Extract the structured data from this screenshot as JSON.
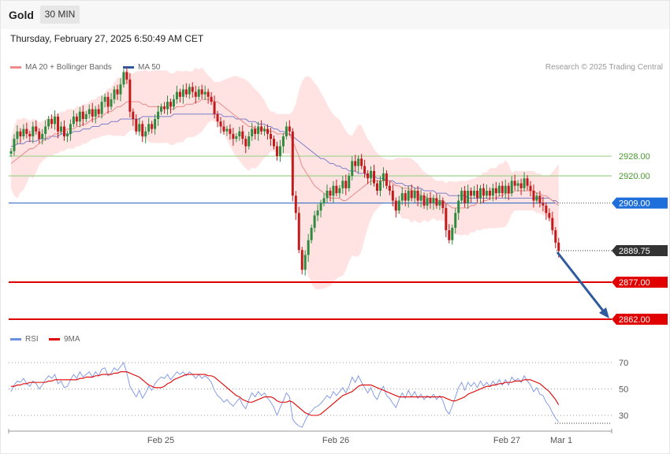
{
  "header": {
    "title": "Gold",
    "timeframe": "30 MIN"
  },
  "timestamp": "Thursday, February 27, 2025 6:50:49 AM CET",
  "legend": {
    "ma20": "MA 20 + Bollinger Bands",
    "ma50": "MA 50",
    "rsi": "RSI",
    "ma9": "9MA"
  },
  "credit": "Research © 2025 Trading Central",
  "colors": {
    "up": "#2e8b3e",
    "down": "#c21a1a",
    "band": "#ffdede",
    "ma20": "#e88a8a",
    "ma50": "#7b7fc9",
    "support": "#e00000",
    "pivot": "#1f5fbf",
    "resistance": "#9fd08c",
    "current": "#333333",
    "arrow": "#2f5b9e"
  },
  "chart_data": [
    {
      "type": "candlestick",
      "x_ticks": [
        "Feb 25",
        "Feb 26",
        "Feb 27",
        "Mar 1"
      ],
      "ylim": [
        2854,
        2948
      ],
      "levels": [
        {
          "label": "2928.00",
          "value": 2928.0,
          "kind": "resistance"
        },
        {
          "label": "2920.00",
          "value": 2920.0,
          "kind": "resistance"
        },
        {
          "label": "2909.00",
          "value": 2909.0,
          "kind": "pivot"
        },
        {
          "label": "2889.75",
          "value": 2889.75,
          "kind": "current"
        },
        {
          "label": "2877.00",
          "value": 2877.0,
          "kind": "support"
        },
        {
          "label": "2862.00",
          "value": 2862.0,
          "kind": "support"
        }
      ],
      "close": [
        2930,
        2935,
        2938,
        2936,
        2939,
        2937,
        2936,
        2940,
        2938,
        2935,
        2937,
        2940,
        2943,
        2941,
        2944,
        2938,
        2940,
        2936,
        2937,
        2941,
        2944,
        2942,
        2946,
        2943,
        2945,
        2947,
        2944,
        2947,
        2945,
        2950,
        2952,
        2948,
        2951,
        2955,
        2953,
        2957,
        2962,
        2959,
        2946,
        2943,
        2938,
        2941,
        2936,
        2938,
        2941,
        2939,
        2943,
        2946,
        2948,
        2947,
        2950,
        2948,
        2951,
        2954,
        2952,
        2955,
        2953,
        2956,
        2954,
        2952,
        2955,
        2953,
        2954,
        2952,
        2950,
        2945,
        2942,
        2940,
        2938,
        2939,
        2937,
        2935,
        2936,
        2938,
        2935,
        2932,
        2936,
        2939,
        2937,
        2940,
        2938,
        2939,
        2937,
        2935,
        2932,
        2928,
        2932,
        2936,
        2940,
        2938,
        2912,
        2905,
        2890,
        2882,
        2888,
        2894,
        2899,
        2904,
        2906,
        2909,
        2911,
        2914,
        2912,
        2916,
        2913,
        2915,
        2918,
        2915,
        2920,
        2926,
        2924,
        2927,
        2924,
        2921,
        2919,
        2922,
        2917,
        2914,
        2918,
        2921,
        2916,
        2914,
        2910,
        2906,
        2910,
        2913,
        2910,
        2914,
        2911,
        2914,
        2910,
        2912,
        2908,
        2911,
        2909,
        2911,
        2908,
        2910,
        2907,
        2898,
        2894,
        2899,
        2905,
        2910,
        2914,
        2909,
        2914,
        2912,
        2914,
        2911,
        2915,
        2912,
        2914,
        2912,
        2915,
        2913,
        2916,
        2913,
        2916,
        2913,
        2918,
        2916,
        2917,
        2915,
        2919,
        2916,
        2914,
        2910,
        2912,
        2909,
        2908,
        2905,
        2903,
        2898,
        2893,
        2889.75
      ],
      "ma20": [
        2925,
        2926,
        2927,
        2928,
        2929,
        2930,
        2931,
        2931,
        2932,
        2933,
        2934,
        2935,
        2936,
        2936,
        2937,
        2937,
        2938,
        2938,
        2939,
        2939,
        2939,
        2940,
        2940,
        2941,
        2941,
        2942,
        2943,
        2943,
        2944,
        2944,
        2945,
        2946,
        2946,
        2947,
        2948,
        2948,
        2949,
        2950,
        2950,
        2950,
        2950,
        2950,
        2949,
        2949,
        2948,
        2948,
        2948,
        2948,
        2948,
        2948,
        2948,
        2947,
        2947,
        2948,
        2948,
        2948,
        2949,
        2949,
        2949,
        2950,
        2950,
        2951,
        2951,
        2951,
        2951,
        2950,
        2950,
        2949,
        2948,
        2947,
        2946,
        2945,
        2944,
        2943,
        2942,
        2941,
        2940,
        2940,
        2939,
        2939,
        2939,
        2939,
        2938,
        2938,
        2938,
        2937,
        2937,
        2937,
        2937,
        2937,
        2934,
        2931,
        2928,
        2924,
        2922,
        2920,
        2918,
        2916,
        2915,
        2914,
        2913,
        2912,
        2911,
        2911,
        2911,
        2911,
        2910,
        2910,
        2911,
        2912,
        2913,
        2914,
        2915,
        2916,
        2917,
        2918,
        2918,
        2918,
        2918,
        2918,
        2918,
        2918,
        2917,
        2916,
        2916,
        2915,
        2915,
        2915,
        2914,
        2914,
        2913,
        2912,
        2912,
        2911,
        2911,
        2911,
        2910,
        2910,
        2910,
        2909,
        2908,
        2907,
        2907,
        2907,
        2907,
        2907,
        2907,
        2908,
        2908,
        2909,
        2909,
        2910,
        2910,
        2911,
        2911,
        2911,
        2912,
        2912,
        2913,
        2913,
        2913,
        2914,
        2914,
        2914,
        2914,
        2914,
        2914,
        2914,
        2913,
        2913,
        2912,
        2912,
        2911,
        2910,
        2909,
        2908
      ],
      "ma50": [
        2932,
        2932,
        2933,
        2933,
        2933,
        2934,
        2934,
        2934,
        2934,
        2935,
        2935,
        2935,
        2935,
        2936,
        2936,
        2936,
        2937,
        2937,
        2937,
        2937,
        2938,
        2938,
        2938,
        2939,
        2939,
        2939,
        2940,
        2940,
        2940,
        2941,
        2941,
        2941,
        2942,
        2942,
        2942,
        2943,
        2943,
        2943,
        2943,
        2943,
        2943,
        2943,
        2944,
        2944,
        2944,
        2944,
        2944,
        2944,
        2944,
        2944,
        2944,
        2944,
        2945,
        2945,
        2945,
        2945,
        2945,
        2945,
        2945,
        2945,
        2945,
        2945,
        2945,
        2945,
        2945,
        2945,
        2945,
        2945,
        2944,
        2944,
        2944,
        2944,
        2943,
        2943,
        2943,
        2943,
        2942,
        2942,
        2942,
        2941,
        2941,
        2941,
        2940,
        2940,
        2939,
        2939,
        2938,
        2938,
        2937,
        2937,
        2936,
        2935,
        2934,
        2933,
        2932,
        2931,
        2930,
        2929,
        2928,
        2927,
        2927,
        2926,
        2925,
        2925,
        2924,
        2924,
        2923,
        2923,
        2922,
        2922,
        2922,
        2921,
        2921,
        2921,
        2920,
        2920,
        2920,
        2919,
        2919,
        2919,
        2918,
        2918,
        2918,
        2917,
        2917,
        2917,
        2916,
        2916,
        2916,
        2915,
        2915,
        2915,
        2914,
        2914,
        2914,
        2914,
        2913,
        2913,
        2913,
        2913,
        2912,
        2912,
        2912,
        2912,
        2912,
        2912,
        2911,
        2911,
        2911,
        2911,
        2911,
        2911,
        2911,
        2911,
        2911,
        2911,
        2911,
        2911,
        2911,
        2911,
        2911,
        2911,
        2911,
        2911,
        2911,
        2911,
        2911,
        2911,
        2911,
        2911,
        2911,
        2911,
        2911,
        2910,
        2910,
        2909
      ]
    },
    {
      "type": "line",
      "series_names": [
        "RSI",
        "9MA"
      ],
      "y_ticks": [
        "70",
        "50",
        "30"
      ],
      "ylim": [
        20,
        80
      ],
      "rsi": [
        48,
        53,
        56,
        55,
        58,
        54,
        52,
        56,
        54,
        50,
        53,
        57,
        60,
        58,
        61,
        54,
        56,
        51,
        52,
        57,
        61,
        58,
        63,
        59,
        61,
        63,
        59,
        63,
        60,
        65,
        66,
        60,
        62,
        66,
        64,
        67,
        70,
        62,
        52,
        48,
        44,
        49,
        43,
        47,
        52,
        49,
        54,
        57,
        59,
        58,
        61,
        57,
        60,
        63,
        61,
        63,
        60,
        63,
        61,
        58,
        61,
        58,
        60,
        58,
        55,
        49,
        45,
        43,
        40,
        42,
        39,
        37,
        40,
        43,
        38,
        35,
        42,
        47,
        44,
        48,
        45,
        47,
        43,
        40,
        36,
        30,
        36,
        41,
        47,
        44,
        27,
        24,
        22,
        21,
        26,
        31,
        33,
        36,
        37,
        39,
        42,
        45,
        43,
        48,
        45,
        48,
        51,
        47,
        52,
        59,
        55,
        60,
        55,
        51,
        47,
        51,
        45,
        42,
        48,
        52,
        45,
        43,
        39,
        36,
        42,
        47,
        43,
        49,
        44,
        48,
        43,
        46,
        42,
        45,
        43,
        46,
        42,
        45,
        41,
        34,
        31,
        37,
        44,
        51,
        55,
        49,
        55,
        52,
        55,
        51,
        56,
        52,
        55,
        52,
        56,
        53,
        57,
        53,
        57,
        53,
        59,
        56,
        58,
        55,
        60,
        56,
        53,
        48,
        51,
        46,
        45,
        40,
        37,
        32,
        28,
        25
      ],
      "ma9": [
        52,
        52,
        53,
        53,
        54,
        54,
        55,
        55,
        55,
        55,
        55,
        55,
        56,
        56,
        57,
        57,
        57,
        57,
        57,
        57,
        57,
        57,
        58,
        58,
        59,
        59,
        59,
        60,
        60,
        61,
        61,
        61,
        61,
        62,
        62,
        63,
        63,
        63,
        62,
        61,
        60,
        59,
        57,
        55,
        53,
        52,
        51,
        51,
        51,
        52,
        54,
        55,
        57,
        58,
        59,
        60,
        61,
        61,
        61,
        61,
        61,
        61,
        61,
        60,
        60,
        59,
        57,
        55,
        53,
        51,
        49,
        47,
        45,
        44,
        42,
        41,
        40,
        40,
        41,
        42,
        43,
        44,
        44,
        44,
        43,
        41,
        40,
        40,
        40,
        41,
        40,
        38,
        36,
        34,
        32,
        31,
        30,
        30,
        30,
        31,
        33,
        35,
        37,
        39,
        41,
        43,
        45,
        46,
        47,
        48,
        50,
        52,
        53,
        53,
        53,
        53,
        52,
        51,
        50,
        49,
        48,
        47,
        46,
        45,
        44,
        44,
        44,
        44,
        44,
        44,
        44,
        44,
        44,
        44,
        44,
        44,
        44,
        44,
        44,
        43,
        42,
        41,
        41,
        42,
        43,
        44,
        46,
        47,
        48,
        49,
        50,
        51,
        52,
        52,
        53,
        53,
        54,
        54,
        55,
        55,
        55,
        56,
        56,
        56,
        57,
        57,
        57,
        56,
        55,
        54,
        52,
        50,
        48,
        45,
        42,
        38
      ]
    }
  ]
}
